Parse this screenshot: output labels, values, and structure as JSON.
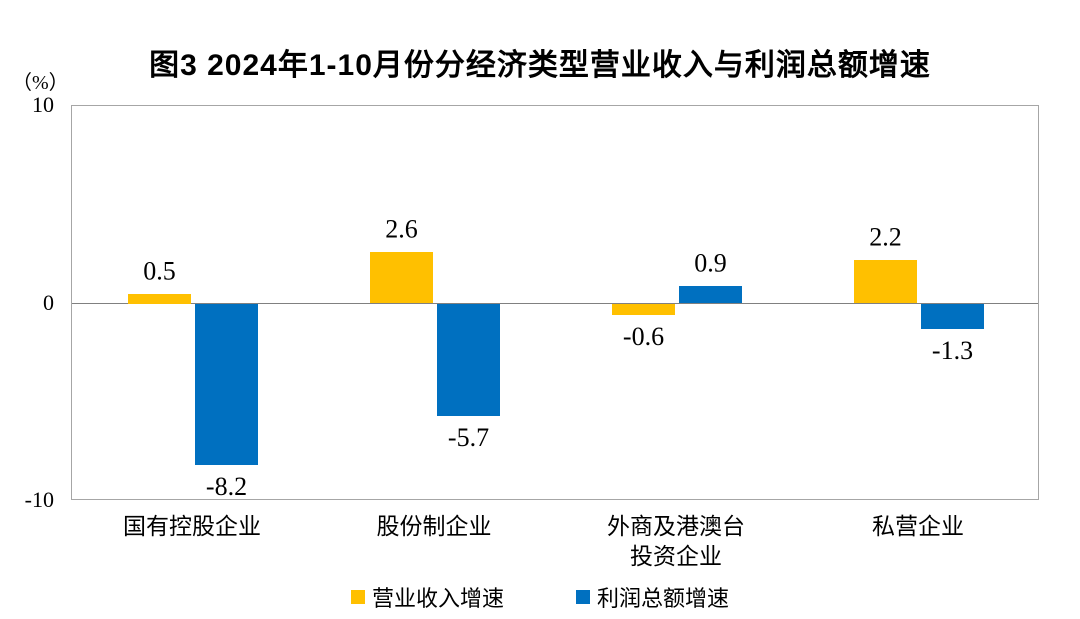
{
  "chart_data": {
    "type": "bar",
    "title": "图3 2024年1-10月份分经济类型营业收入与利润总额增速",
    "unit_label": "（%）",
    "categories": [
      "国有控股企业",
      "股份制企业",
      "外商及港澳台\n投资企业",
      "私营企业"
    ],
    "series": [
      {
        "name": "营业收入增速",
        "color": "#FFC000",
        "values": [
          0.5,
          2.6,
          -0.6,
          2.2
        ]
      },
      {
        "name": "利润总额增速",
        "color": "#0070C0",
        "values": [
          -8.2,
          -5.7,
          0.9,
          -1.3
        ]
      }
    ],
    "ylim": [
      -10,
      10
    ],
    "yticks": [
      10,
      0,
      -10
    ],
    "grid": false,
    "legend_position": "bottom",
    "value_label_decimals": 1
  },
  "colors": {
    "background": "#ffffff",
    "text": "#000000",
    "plot_border": "#a6a6a6",
    "zero_line": "#808080"
  }
}
